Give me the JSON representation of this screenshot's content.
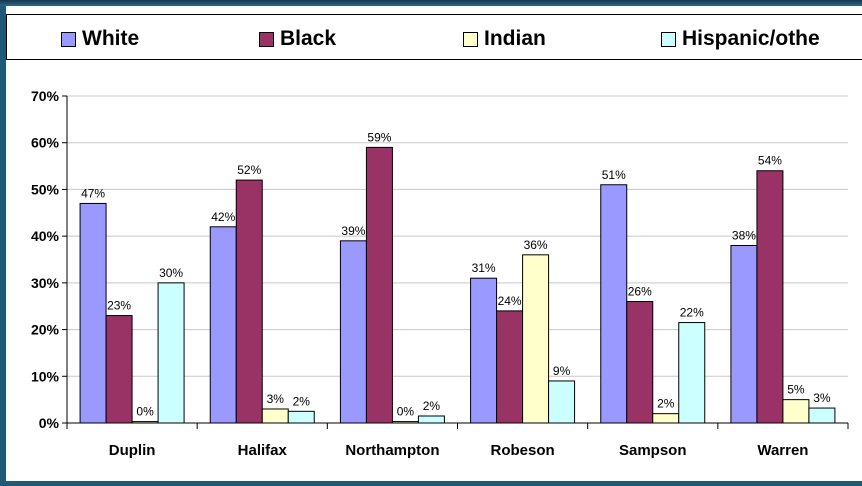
{
  "legend": {
    "items": [
      {
        "label": "White",
        "color": "#9999ff"
      },
      {
        "label": "Black",
        "color": "#993366"
      },
      {
        "label": "Indian",
        "color": "#ffffcc"
      },
      {
        "label": "Hispanic/othe",
        "color": "#ccffff"
      }
    ]
  },
  "chart_data": {
    "type": "bar",
    "categories": [
      "Duplin",
      "Halifax",
      "Northampton",
      "Robeson",
      "Sampson",
      "Warren"
    ],
    "series": [
      {
        "name": "White",
        "color": "#9999ff",
        "values": [
          47,
          42,
          39,
          31,
          51,
          38
        ],
        "labels": [
          "47%",
          "42%",
          "39%",
          "31%",
          "51%",
          "38%"
        ]
      },
      {
        "name": "Black",
        "color": "#993366",
        "values": [
          23,
          52,
          59,
          24,
          26,
          54
        ],
        "labels": [
          "23%",
          "52%",
          "59%",
          "24%",
          "26%",
          "54%"
        ]
      },
      {
        "name": "Indian",
        "color": "#ffffcc",
        "values": [
          0.3,
          3,
          0.3,
          36,
          2,
          5
        ],
        "labels": [
          "0%",
          "3%",
          "0%",
          "36%",
          "2%",
          "5%"
        ]
      },
      {
        "name": "Hispanic/other",
        "color": "#ccffff",
        "values": [
          30,
          2.5,
          1.5,
          9,
          21.5,
          3.2
        ],
        "labels": [
          "30%",
          "2%",
          "2%",
          "9%",
          "22%",
          "3%"
        ]
      }
    ],
    "ylim": [
      0,
      70
    ],
    "yticks": [
      0,
      10,
      20,
      30,
      40,
      50,
      60,
      70
    ],
    "ytick_labels": [
      "0%",
      "10%",
      "20%",
      "30%",
      "40%",
      "50%",
      "60%",
      "70%"
    ],
    "grid": true,
    "legend_position": "top"
  }
}
